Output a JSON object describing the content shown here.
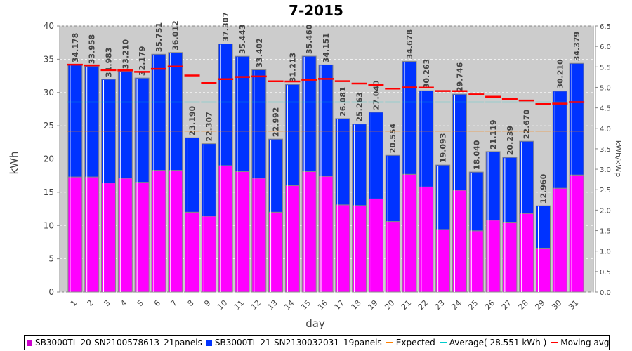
{
  "chart_data": {
    "type": "bar",
    "stacked": true,
    "title": "7-2015",
    "xlabel": "day",
    "ylabel": "kWh",
    "y2label": "kWh/kWp",
    "ylim": [
      0,
      40
    ],
    "yticks": [
      0,
      5,
      10,
      15,
      20,
      25,
      30,
      35,
      40
    ],
    "y2lim": [
      0,
      6.5
    ],
    "y2ticks": [
      "0.0",
      "0.5",
      "1.0",
      "1.5",
      "2.0",
      "2.5",
      "3.0",
      "3.5",
      "4.0",
      "4.5",
      "5.0",
      "5.5",
      "6.0",
      "6.5"
    ],
    "grid": true,
    "legend_position": "bottom",
    "categories": [
      "1",
      "2",
      "3",
      "4",
      "5",
      "6",
      "7",
      "8",
      "9",
      "10",
      "11",
      "12",
      "13",
      "14",
      "15",
      "16",
      "17",
      "18",
      "19",
      "20",
      "21",
      "22",
      "23",
      "24",
      "25",
      "26",
      "27",
      "28",
      "29",
      "30",
      "31"
    ],
    "totals": [
      "34.178",
      "33.958",
      "31.983",
      "33.210",
      "32.179",
      "35.751",
      "36.012",
      "23.190",
      "22.307",
      "37.307",
      "35.443",
      "33.402",
      "22.992",
      "31.213",
      "35.460",
      "34.151",
      "26.081",
      "25.263",
      "27.040",
      "20.554",
      "34.678",
      "30.263",
      "19.093",
      "29.746",
      "18.040",
      "21.119",
      "20.239",
      "22.670",
      "12.960",
      "30.210",
      "34.379"
    ],
    "series": [
      {
        "name": "SB3000TL-20-SN2100578613_21panels",
        "color": "#ff00ff",
        "values": [
          17.3,
          17.3,
          16.4,
          17.1,
          16.5,
          18.3,
          18.3,
          12.0,
          11.4,
          19.0,
          18.1,
          17.1,
          12.0,
          16.0,
          18.1,
          17.4,
          13.1,
          13.0,
          14.0,
          10.6,
          17.7,
          15.8,
          9.4,
          15.3,
          9.2,
          10.8,
          10.5,
          11.8,
          6.6,
          15.6,
          17.6
        ]
      },
      {
        "name": "SB3000TL-21-SN2130032031_19panels",
        "color": "#0033ff",
        "values": [
          16.9,
          16.7,
          15.6,
          16.1,
          15.7,
          17.5,
          17.7,
          11.2,
          10.9,
          18.3,
          17.3,
          16.3,
          11.0,
          15.2,
          17.4,
          16.8,
          13.0,
          12.3,
          13.0,
          10.0,
          17.0,
          14.5,
          9.7,
          14.4,
          8.8,
          10.3,
          9.7,
          10.9,
          6.4,
          14.6,
          16.8
        ]
      }
    ],
    "lines": [
      {
        "name": "Expected",
        "color": "#ff8000",
        "value": 24.2
      },
      {
        "name": "Average( 28.551 kWh )",
        "color": "#00cccc",
        "value": 28.551
      },
      {
        "name": "Moving avg. per day.",
        "color": "#ff0000",
        "values": [
          34.18,
          34.07,
          33.37,
          33.33,
          33.1,
          33.55,
          33.9,
          32.56,
          31.42,
          32.01,
          32.33,
          32.42,
          31.69,
          31.66,
          31.91,
          32.05,
          31.7,
          31.34,
          31.11,
          30.58,
          30.77,
          30.74,
          30.23,
          30.21,
          29.72,
          29.37,
          29.03,
          28.8,
          28.26,
          28.32,
          28.55
        ]
      }
    ]
  }
}
